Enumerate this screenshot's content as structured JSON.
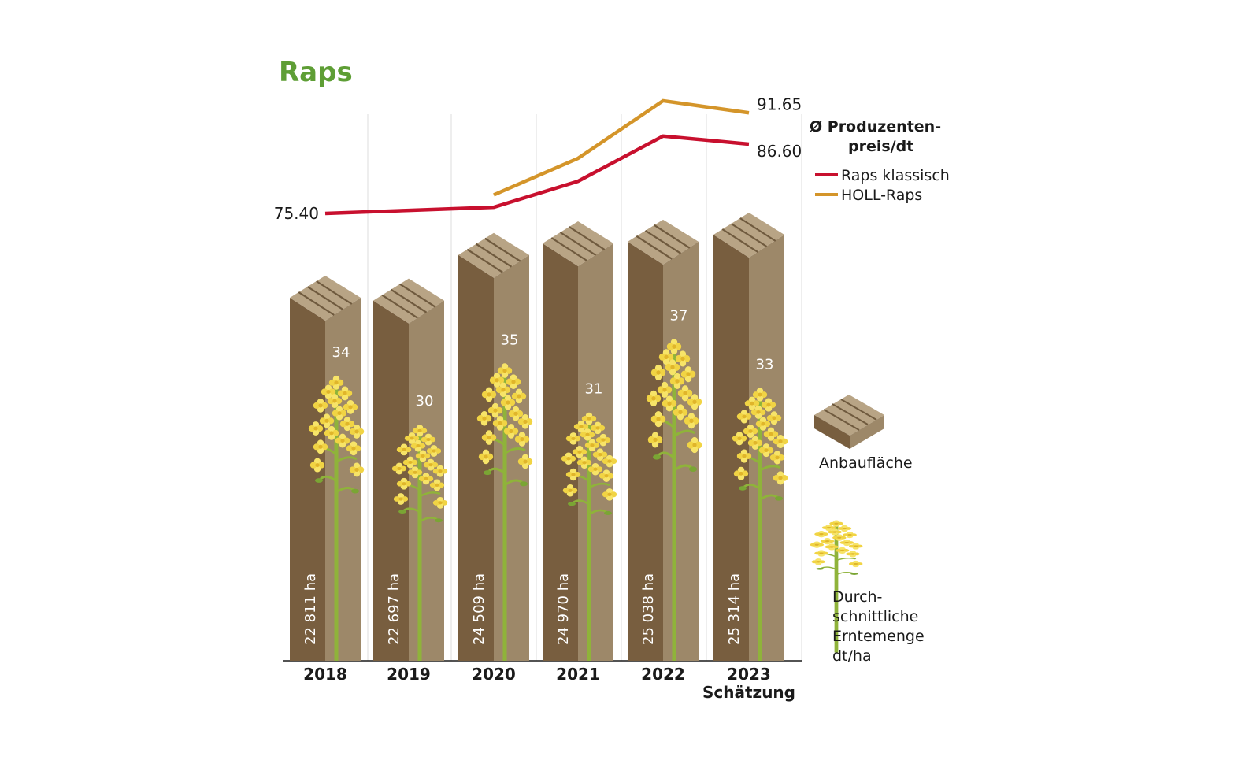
{
  "chart_data": {
    "type": "bar",
    "title": "Raps",
    "categories": [
      "2018",
      "2019",
      "2020",
      "2021",
      "2022",
      "2023"
    ],
    "category_sublabels": [
      "",
      "",
      "",
      "",
      "",
      "Schätzung"
    ],
    "area_series": {
      "name": "Anbaufläche",
      "values": [
        22811,
        22697,
        24509,
        24970,
        25038,
        25314
      ],
      "labels": [
        "22 811 ha",
        "22 697 ha",
        "24 509 ha",
        "24 970 ha",
        "25 038 ha",
        "25 314 ha"
      ]
    },
    "yield_series": {
      "name": "Durch-\nschnittliche\nErntemenge\ndt/ha",
      "values": [
        34,
        30,
        35,
        31,
        37,
        33
      ]
    },
    "price_title": [
      "Ø Produzenten-",
      "preis/dt"
    ],
    "price_series": [
      {
        "name": "Raps klassisch",
        "color": "#c8102e",
        "values": [
          75.4,
          75.9,
          76.4,
          80.6,
          87.9,
          86.6
        ],
        "labels": [
          "75.40",
          "",
          "",
          "",
          "",
          "86.60"
        ]
      },
      {
        "name": "HOLL-Raps",
        "color": "#d4952a",
        "values": [
          null,
          null,
          78.4,
          84.3,
          93.6,
          91.65
        ],
        "labels": [
          "",
          "",
          "",
          "",
          "",
          "91.65"
        ]
      }
    ],
    "grid": true,
    "legend_position": "right"
  },
  "colors": {
    "title": "#5e9e35",
    "column_dark": "#785e3f",
    "column_light": "#9d8869",
    "column_top": "#b8a485",
    "stem": "#8fb33a",
    "flower": "#f5df5a"
  }
}
